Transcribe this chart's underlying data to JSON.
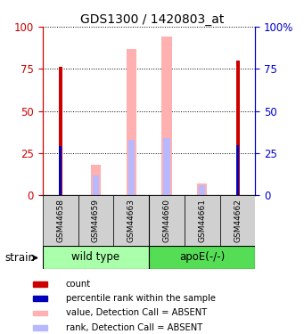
{
  "title": "GDS1300 / 1420803_at",
  "samples": [
    "GSM44658",
    "GSM44659",
    "GSM44663",
    "GSM44660",
    "GSM44661",
    "GSM44662"
  ],
  "group_labels": [
    "wild type",
    "apoE(-/-)"
  ],
  "ylim": [
    0,
    100
  ],
  "count_values": [
    76,
    0,
    0,
    0,
    0,
    80
  ],
  "rank_values": [
    29,
    0,
    0,
    0,
    0,
    30
  ],
  "value_absent": [
    0,
    18,
    87,
    94,
    7,
    0
  ],
  "rank_absent": [
    0,
    12,
    33,
    34,
    6,
    0
  ],
  "left_axis_color": "#cc0000",
  "right_axis_color": "#0000cc",
  "count_color": "#cc0000",
  "rank_color": "#0000bb",
  "value_absent_color": "#ffb0b0",
  "rank_absent_color": "#b8b8ff",
  "wildtype_color": "#aaffaa",
  "apoe_color": "#55dd55",
  "sample_box_color": "#d0d0d0",
  "legend_items": [
    "count",
    "percentile rank within the sample",
    "value, Detection Call = ABSENT",
    "rank, Detection Call = ABSENT"
  ]
}
